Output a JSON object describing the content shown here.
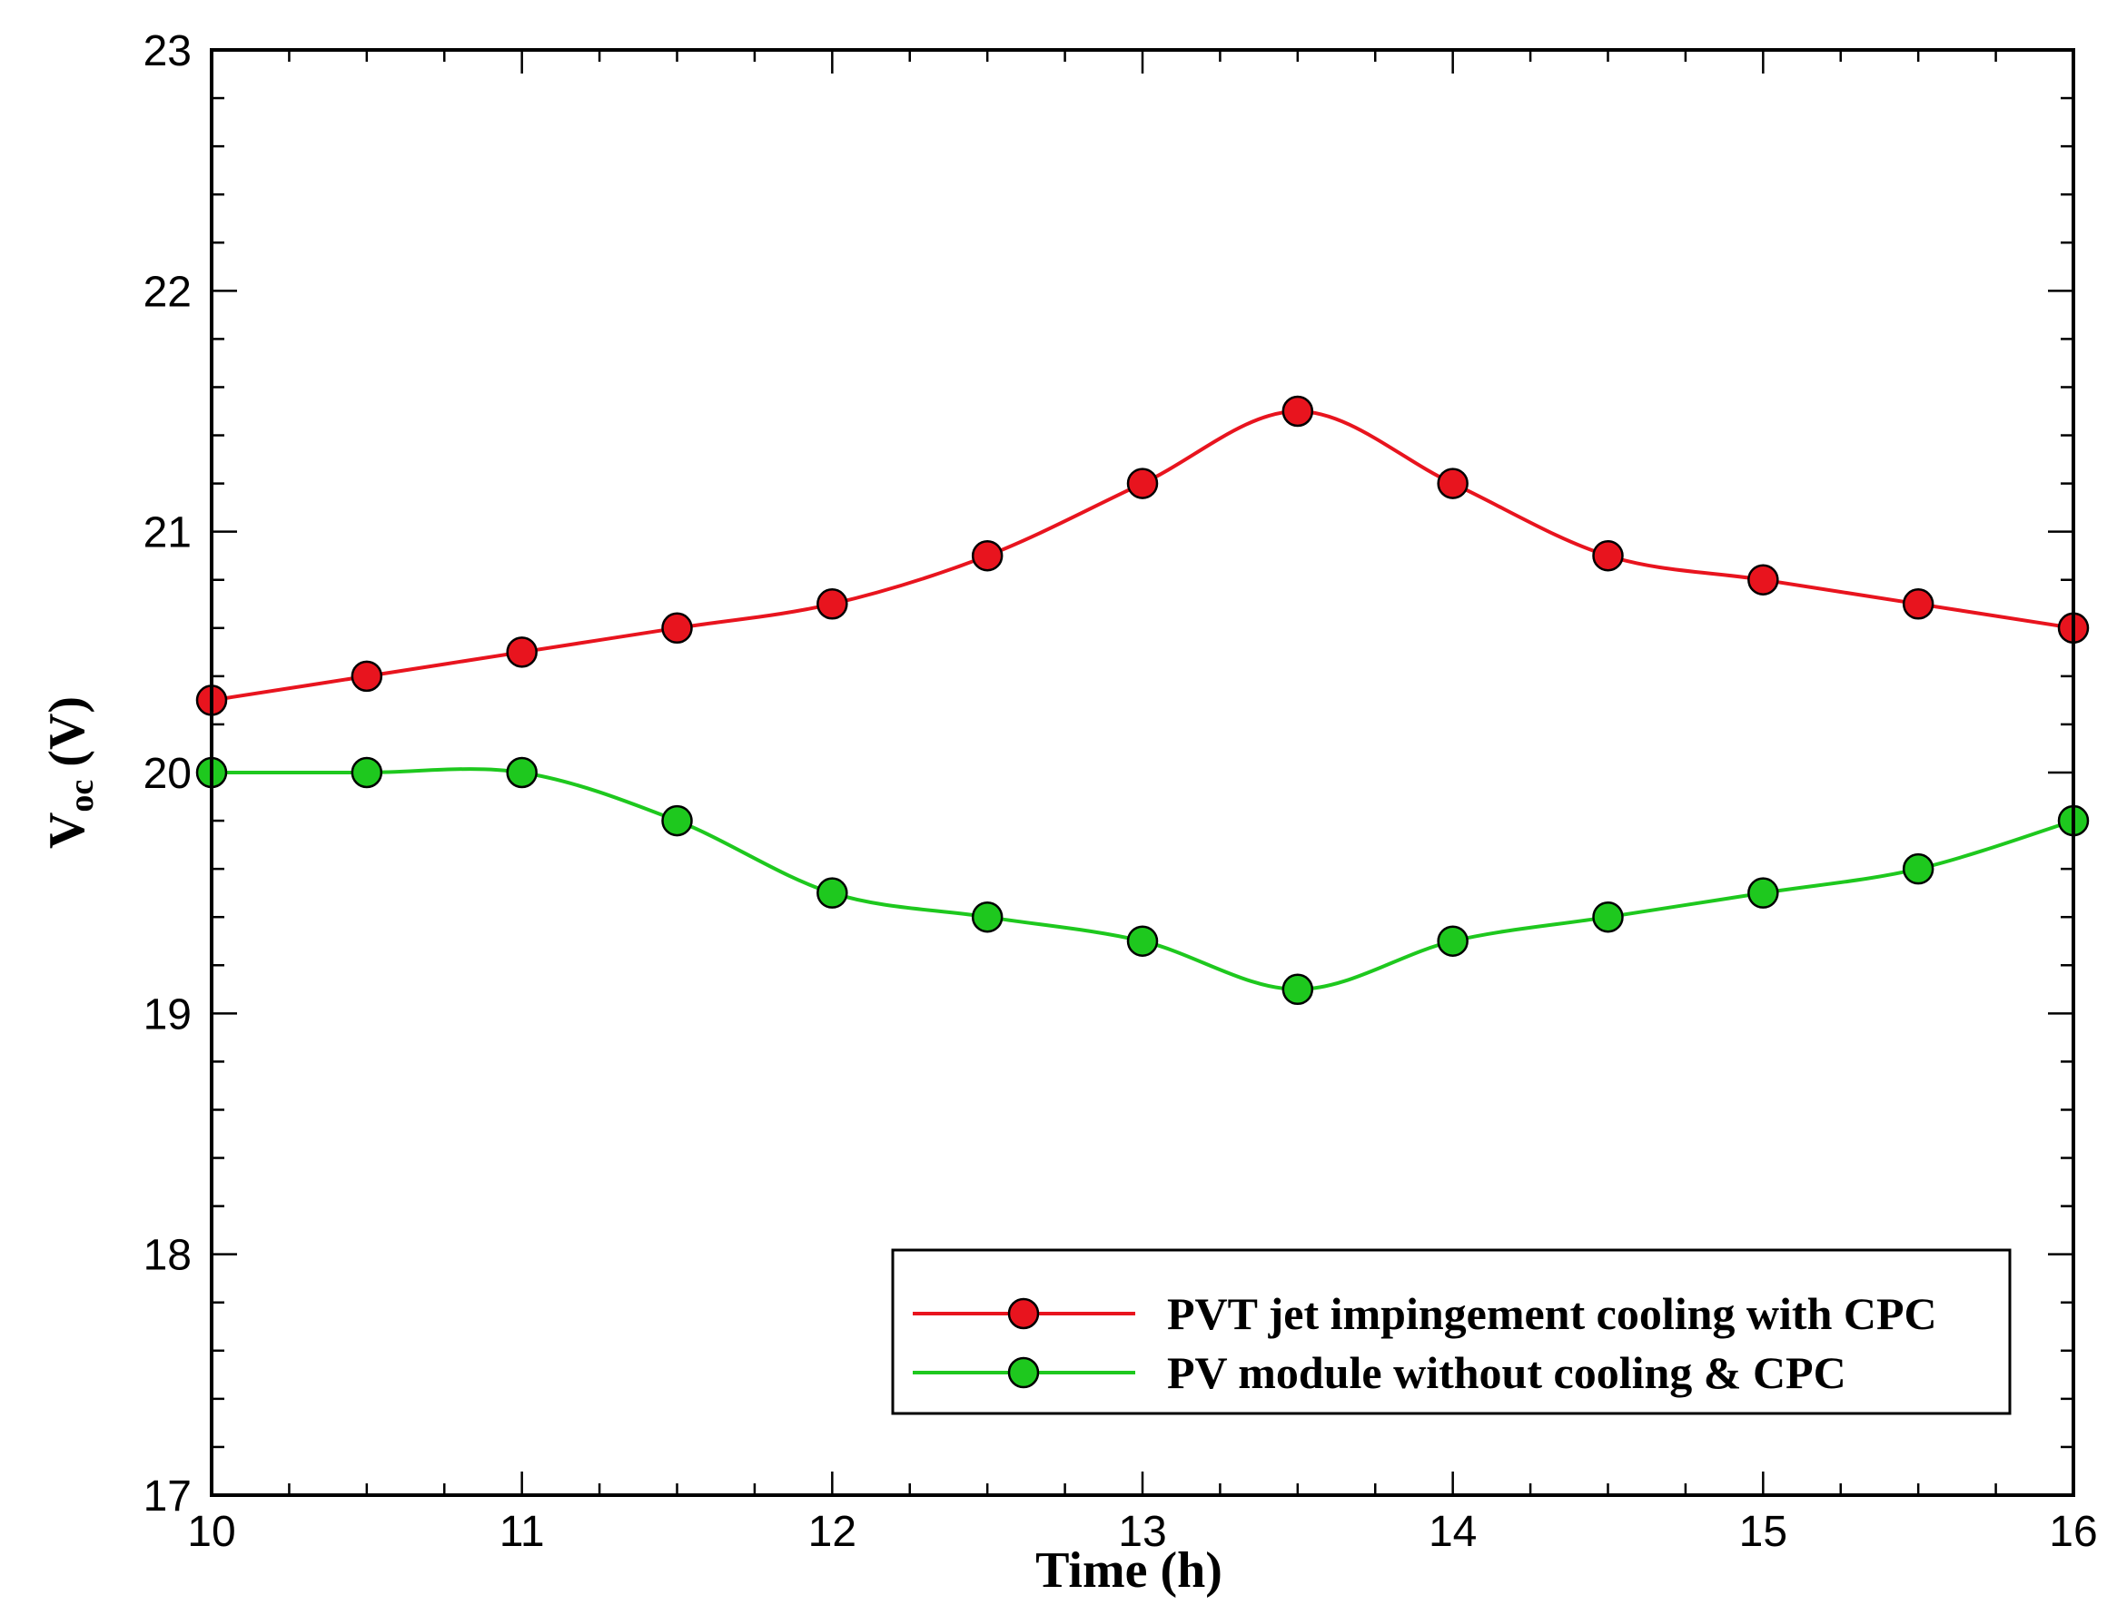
{
  "chart_data": {
    "type": "line",
    "title": "",
    "xlabel": "Time (h)",
    "ylabel": {
      "main": "V",
      "sub": "oc",
      "unit": " (V)"
    },
    "xlim": [
      10,
      16
    ],
    "ylim": [
      17,
      23
    ],
    "xticks": [
      "10",
      "11",
      "12",
      "13",
      "14",
      "15",
      "16"
    ],
    "yticks": [
      "17",
      "18",
      "19",
      "20",
      "21",
      "22",
      "23"
    ],
    "x": [
      10,
      10.5,
      11,
      11.5,
      12,
      12.5,
      13,
      13.5,
      14,
      14.5,
      15,
      15.5,
      16
    ],
    "series": [
      {
        "name": "PVT jet impingement cooling with CPC",
        "color": "#e8141e",
        "values": [
          20.3,
          20.4,
          20.5,
          20.6,
          20.7,
          20.9,
          21.2,
          21.5,
          21.2,
          20.9,
          20.8,
          20.7,
          20.6
        ]
      },
      {
        "name": "PV module without cooling & CPC",
        "color": "#1ec81e",
        "values": [
          20.0,
          20.0,
          20.0,
          19.8,
          19.5,
          19.4,
          19.3,
          19.1,
          19.3,
          19.4,
          19.5,
          19.6,
          19.8
        ]
      }
    ],
    "legend_position": "bottom-right",
    "grid": false
  }
}
